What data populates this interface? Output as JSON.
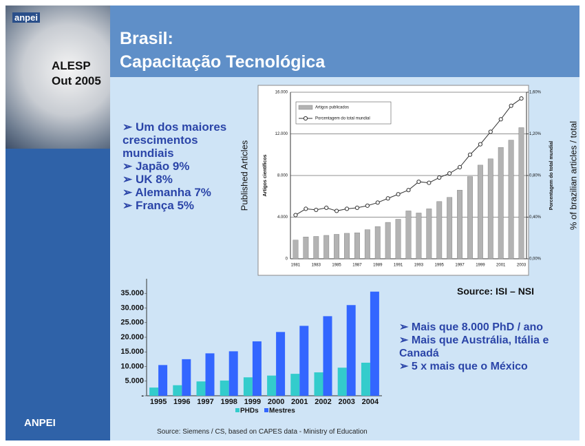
{
  "header": {
    "logo": "anpei",
    "event": "ALESP",
    "date": "Out 2005",
    "title_line1": "Brasil:",
    "title_line2": "Capacitação Tecnológica"
  },
  "bullets_left": [
    "Um dos maiores crescimentos mundiais",
    "Japão 9%",
    "UK 8%",
    "Alemanha 7%",
    "França 5%"
  ],
  "source_top": "Source: ISI – NSI",
  "bullets_right": [
    "Mais que 8.000 PhD / ano",
    "Mais que Austrália, Itália e Canadá",
    "5 x mais que o México"
  ],
  "footer": {
    "brand": "ANPEI",
    "source": "Source: Siemens / CS, based on CAPES data - Ministry of Education"
  },
  "chart_data": [
    {
      "type": "combo",
      "categories": [
        "1981",
        null,
        "1983",
        null,
        "1985",
        null,
        "1987",
        null,
        "1989",
        null,
        "1991",
        null,
        "1993",
        null,
        "1995",
        null,
        "1997",
        null,
        "1999",
        null,
        "2001",
        null,
        "2003"
      ],
      "series": [
        {
          "name": "Artigos publicados",
          "type": "bar",
          "color": "#b3b3b3",
          "values": [
            1800,
            2100,
            2150,
            2250,
            2350,
            2450,
            2500,
            2800,
            3100,
            3500,
            3800,
            4600,
            4400,
            4800,
            5500,
            5900,
            6600,
            7900,
            9000,
            9600,
            10700,
            11400,
            12600
          ]
        },
        {
          "name": "Porcentagem do total mundial",
          "type": "line",
          "axis": "y2",
          "color": "#333333",
          "values": [
            0.42,
            0.48,
            0.47,
            0.49,
            0.46,
            0.48,
            0.49,
            0.51,
            0.54,
            0.58,
            0.62,
            0.66,
            0.74,
            0.73,
            0.78,
            0.82,
            0.88,
            1.0,
            1.1,
            1.22,
            1.34,
            1.47,
            1.54
          ]
        }
      ],
      "ylim": [
        0,
        16000
      ],
      "yticks": [
        0,
        {
          "value": 4000,
          "label": "4.000"
        },
        {
          "value": 8000,
          "label": "8.000"
        },
        {
          "value": 12000,
          "label": "12.000"
        },
        {
          "value": 16000,
          "label": "16.000"
        }
      ],
      "y2lim": [
        0,
        1.6
      ],
      "y2ticks": [
        {
          "value": 0,
          "label": "0,00%"
        },
        {
          "value": 0.4,
          "label": "0,40%"
        },
        {
          "value": 0.8,
          "label": "0,80%"
        },
        {
          "value": 1.2,
          "label": "1,20%"
        },
        {
          "value": 1.6,
          "label": "1,60%"
        }
      ],
      "ylabel": "Artigos científicos",
      "ylabel_outer": "Published Articles",
      "y2label": "Porcentagem do total mundial",
      "y2label_outer": "% of brazilian articles / total",
      "grid": true,
      "legend": "upper left"
    },
    {
      "type": "bar",
      "categories": [
        "1995",
        "1996",
        "1997",
        "1998",
        "1999",
        "2000",
        "2001",
        "2002",
        "2003",
        "2004"
      ],
      "series": [
        {
          "name": "PHDs",
          "color": "#33cccc",
          "values": [
            2800,
            3600,
            4900,
            5200,
            6300,
            6900,
            7500,
            8000,
            9600,
            11300
          ]
        },
        {
          "name": "Mestres",
          "color": "#3366ff",
          "values": [
            10500,
            12500,
            14500,
            15200,
            18600,
            21800,
            23900,
            27200,
            31000,
            35600
          ]
        }
      ],
      "ylim": [
        0,
        40000
      ],
      "yticks": [
        {
          "value": 0,
          "label": "-"
        },
        {
          "value": 5000,
          "label": "5.000"
        },
        {
          "value": 10000,
          "label": "10.000"
        },
        {
          "value": 15000,
          "label": "15.000"
        },
        {
          "value": 20000,
          "label": "20.000"
        },
        {
          "value": 25000,
          "label": "25.000"
        },
        {
          "value": 30000,
          "label": "30.000"
        },
        {
          "value": 35000,
          "label": "35.000"
        }
      ],
      "grid": false,
      "legend": "bottom"
    }
  ]
}
